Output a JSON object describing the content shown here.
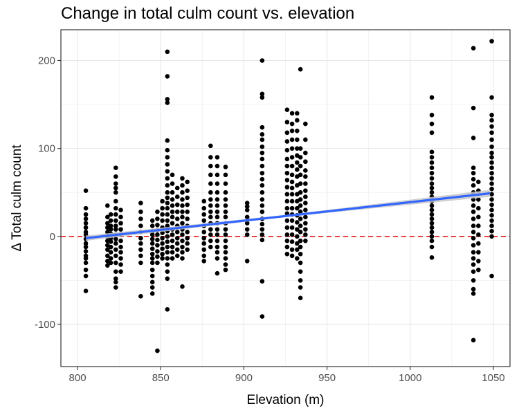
{
  "chart_data": {
    "type": "scatter",
    "title": "Change in total culm count vs. elevation",
    "xlabel": "Elevation (m)",
    "ylabel": "Δ Total culm count",
    "xlim": [
      790,
      1060
    ],
    "ylim": [
      -148,
      235
    ],
    "x_ticks": [
      800,
      850,
      900,
      950,
      1000,
      1050
    ],
    "y_ticks": [
      -100,
      0,
      100,
      200
    ],
    "grid": true,
    "reference_line": {
      "y": 0,
      "style": "dashed",
      "color": "#e41a1c"
    },
    "trend": {
      "method": "linear fit with confidence band",
      "color": "#3366ff",
      "band_color": "#c8c8c8",
      "points": [
        [
          805,
          -2
        ],
        [
          1048,
          49
        ]
      ],
      "band_halfwidth": [
        3,
        1.2,
        4
      ]
    },
    "point_color": "#000000",
    "columns": [
      {
        "x": 805,
        "y": [
          52,
          32,
          25,
          20,
          15,
          10,
          5,
          2,
          -3,
          -8,
          -12,
          -17,
          -22,
          -25,
          -30,
          -38,
          -45,
          -62
        ]
      },
      {
        "x": 818,
        "y": [
          35,
          22,
          15,
          10,
          5,
          0,
          -5,
          -10,
          -15,
          -22,
          -28,
          -33
        ]
      },
      {
        "x": 820,
        "y": [
          25,
          18,
          12,
          8,
          3,
          -2,
          -6,
          -12,
          -18,
          -25,
          -30
        ]
      },
      {
        "x": 823,
        "y": [
          78,
          68,
          60,
          55,
          50,
          40,
          32,
          25,
          18,
          12,
          8,
          2,
          -3,
          -8,
          -15,
          -22,
          -30,
          -40,
          -48,
          -52,
          -58
        ]
      },
      {
        "x": 826,
        "y": [
          30,
          22,
          15,
          8,
          2,
          -5,
          -12,
          -18,
          -25,
          -32,
          -40
        ]
      },
      {
        "x": 838,
        "y": [
          38,
          28,
          20,
          12,
          5,
          -2,
          -8,
          -15,
          -22,
          -30,
          -68
        ]
      },
      {
        "x": 845,
        "y": [
          18,
          12,
          6,
          2,
          -3,
          -8,
          -14,
          -20,
          -25,
          -30,
          -38,
          -45,
          -52,
          -58,
          -65
        ]
      },
      {
        "x": 848,
        "y": [
          28,
          20,
          13,
          7,
          2,
          -4,
          -10,
          -17,
          -23,
          -30,
          -130
        ]
      },
      {
        "x": 851,
        "y": [
          40,
          32,
          25,
          18,
          10,
          4,
          -2,
          -8,
          -14,
          -20,
          -25
        ]
      },
      {
        "x": 854,
        "y": [
          210,
          182,
          156,
          152,
          109,
          98,
          90,
          82,
          74,
          66,
          58,
          50,
          44,
          38,
          32,
          25,
          18,
          12,
          6,
          0,
          -6,
          -12,
          -18,
          -25,
          -32,
          -40,
          -48,
          -83
        ]
      },
      {
        "x": 857,
        "y": [
          70,
          60,
          50,
          42,
          35,
          28,
          22,
          15,
          8,
          2,
          -5,
          -12,
          -18,
          -25
        ]
      },
      {
        "x": 860,
        "y": [
          55,
          45,
          36,
          28,
          20,
          12,
          5,
          -2,
          -8,
          -15,
          -22
        ]
      },
      {
        "x": 863,
        "y": [
          66,
          58,
          50,
          42,
          35,
          28,
          22,
          15,
          8,
          2,
          -5,
          -12,
          -18,
          -25,
          -57
        ]
      },
      {
        "x": 866,
        "y": [
          62,
          52,
          44,
          36,
          28,
          20,
          12,
          5,
          -2,
          -8,
          -15
        ]
      },
      {
        "x": 876,
        "y": [
          40,
          32,
          25,
          18,
          12,
          5,
          -2,
          -8,
          -15,
          -22,
          -28
        ]
      },
      {
        "x": 880,
        "y": [
          103,
          90,
          80,
          70,
          60,
          50,
          42,
          35,
          28,
          22,
          15,
          8,
          2,
          -5,
          -12
        ]
      },
      {
        "x": 884,
        "y": [
          90,
          80,
          70,
          60,
          50,
          42,
          35,
          28,
          22,
          15,
          8,
          2,
          -5,
          -12,
          -18,
          -25,
          -42
        ]
      },
      {
        "x": 889,
        "y": [
          79,
          70,
          60,
          50,
          42,
          35,
          28,
          22,
          15,
          8,
          2,
          -5,
          -12,
          -18,
          -25,
          -32,
          -38
        ]
      },
      {
        "x": 902,
        "y": [
          38,
          34,
          30,
          22,
          15,
          8,
          2,
          -28
        ]
      },
      {
        "x": 911,
        "y": [
          200,
          162,
          158,
          124,
          116,
          110,
          102,
          95,
          88,
          80,
          72,
          65,
          58,
          50,
          42,
          35,
          28,
          20,
          14,
          8,
          2,
          -4,
          -51,
          -91
        ]
      },
      {
        "x": 926,
        "y": [
          144,
          130,
          118,
          108,
          98,
          88,
          80,
          72,
          64,
          56,
          48,
          40,
          32,
          26,
          18,
          10,
          2,
          -5,
          -12,
          -20
        ]
      },
      {
        "x": 929,
        "y": [
          140,
          128,
          120,
          110,
          100,
          90,
          80,
          70,
          62,
          55,
          48,
          40,
          32,
          25,
          18,
          10,
          2,
          -6,
          -15,
          -22
        ]
      },
      {
        "x": 932,
        "y": [
          140,
          132,
          120,
          110,
          100,
          92,
          84,
          76,
          68,
          58,
          48,
          40,
          32,
          24,
          16,
          8,
          0,
          -8,
          -15,
          -25
        ]
      },
      {
        "x": 934,
        "y": [
          190,
          100,
          90,
          80,
          70,
          60,
          50,
          42,
          35,
          28,
          20,
          12,
          5,
          -5,
          -12,
          -20,
          -30,
          -40,
          -50,
          -58,
          -70
        ]
      },
      {
        "x": 937,
        "y": [
          128,
          110,
          95,
          85,
          75,
          68,
          60,
          52,
          45,
          38,
          30,
          22,
          15,
          8,
          2,
          -5
        ]
      },
      {
        "x": 1013,
        "y": [
          158,
          138,
          128,
          118,
          96,
          90,
          84,
          78,
          72,
          66,
          60,
          55,
          50,
          45,
          40,
          35,
          30,
          25,
          20,
          15,
          10,
          5,
          0,
          -5,
          -12,
          -24
        ]
      },
      {
        "x": 1038,
        "y": [
          214,
          146,
          112,
          78,
          72,
          65,
          58,
          50,
          42,
          35,
          28,
          20,
          12,
          5,
          -2,
          -10,
          -18,
          -25,
          -32,
          -40,
          -50,
          -60,
          -65,
          -118
        ]
      },
      {
        "x": 1041,
        "y": [
          62,
          52,
          42,
          32,
          22,
          12,
          2,
          -8,
          -18,
          -28,
          -38
        ]
      },
      {
        "x": 1049,
        "y": [
          222,
          158,
          138,
          132,
          125,
          118,
          110,
          102,
          95,
          90,
          84,
          78,
          72,
          66,
          60,
          54,
          48,
          42,
          36,
          30,
          24,
          18,
          12,
          6,
          0,
          -45
        ]
      }
    ]
  }
}
